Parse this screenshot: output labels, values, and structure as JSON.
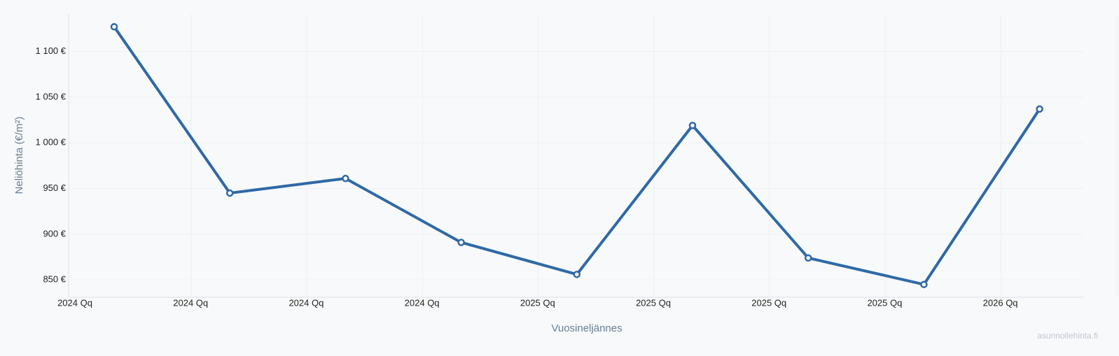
{
  "chart_data": {
    "type": "line",
    "y_axis_title": "Neliöhinta (€/m²)",
    "x_axis_title": "Vuosineljännes",
    "watermark": "asunnollehinta.fi",
    "categories": [
      "2024 Qq",
      "2024 Qq",
      "2024 Qq",
      "2024 Qq",
      "2025 Qq",
      "2025 Qq",
      "2025 Qq",
      "2025 Qq",
      "2026 Qq"
    ],
    "series": [
      {
        "color": "#2f69a5",
        "values": [
          1127,
          945,
          961,
          891,
          856,
          1019,
          874,
          845,
          1037
        ]
      }
    ],
    "ylim": [
      831,
      1141
    ],
    "yticks": [
      {
        "value": 850,
        "label": "850 €"
      },
      {
        "value": 900,
        "label": "900 €"
      },
      {
        "value": 950,
        "label": "950 €"
      },
      {
        "value": 1000,
        "label": "1 000 €"
      },
      {
        "value": 1050,
        "label": "1 050 €"
      },
      {
        "value": 1100,
        "label": "1 100 €"
      }
    ],
    "grid": true
  }
}
